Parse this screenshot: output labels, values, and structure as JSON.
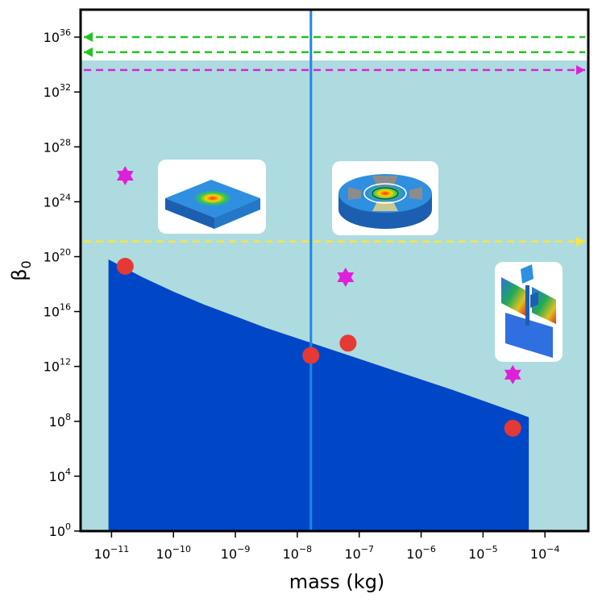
{
  "chart_data": {
    "type": "scatter",
    "title": "",
    "xlabel": "mass (kg)",
    "ylabel": "β",
    "ylabel_sub": "0",
    "x_scale": "log",
    "y_scale": "log",
    "xlim_exp": [
      -11.5,
      -3.3
    ],
    "ylim_exp": [
      0,
      38
    ],
    "x_ticks": [
      {
        "base": "10",
        "exp": "−11",
        "value_exp": -11
      },
      {
        "base": "10",
        "exp": "−10",
        "value_exp": -10
      },
      {
        "base": "10",
        "exp": "−9",
        "value_exp": -9
      },
      {
        "base": "10",
        "exp": "−8",
        "value_exp": -8
      },
      {
        "base": "10",
        "exp": "−7",
        "value_exp": -7
      },
      {
        "base": "10",
        "exp": "−6",
        "value_exp": -6
      },
      {
        "base": "10",
        "exp": "−5",
        "value_exp": -5
      },
      {
        "base": "10",
        "exp": "−4",
        "value_exp": -4
      }
    ],
    "y_ticks": [
      {
        "base": "10",
        "exp": "0",
        "value_exp": 0
      },
      {
        "base": "10",
        "exp": "4",
        "value_exp": 4
      },
      {
        "base": "10",
        "exp": "8",
        "value_exp": 8
      },
      {
        "base": "10",
        "exp": "12",
        "value_exp": 12
      },
      {
        "base": "10",
        "exp": "16",
        "value_exp": 16
      },
      {
        "base": "10",
        "exp": "20",
        "value_exp": 20
      },
      {
        "base": "10",
        "exp": "24",
        "value_exp": 24
      },
      {
        "base": "10",
        "exp": "28",
        "value_exp": 28
      },
      {
        "base": "10",
        "exp": "32",
        "value_exp": 32
      },
      {
        "base": "10",
        "exp": "36",
        "value_exp": 36
      }
    ],
    "series": [
      {
        "name": "circles",
        "marker": "circle",
        "color": "#e53935",
        "points": [
          {
            "x_exp": -10.78,
            "y_exp": 19.3
          },
          {
            "x_exp": -7.78,
            "y_exp": 12.8
          },
          {
            "x_exp": -7.18,
            "y_exp": 13.7
          },
          {
            "x_exp": -4.52,
            "y_exp": 7.5
          }
        ]
      },
      {
        "name": "stars",
        "marker": "star",
        "color": "#e020d8",
        "points": [
          {
            "x_exp": -10.78,
            "y_exp": 25.9
          },
          {
            "x_exp": -7.22,
            "y_exp": 18.5
          },
          {
            "x_exp": -4.52,
            "y_exp": 11.4
          }
        ]
      }
    ],
    "filled_region": {
      "name": "lower-bound-region",
      "color": "#0047c8",
      "x_exp": [
        -11.05,
        -10.5,
        -10.0,
        -9.5,
        -9.0,
        -8.5,
        -8.0,
        -7.5,
        -7.0,
        -6.5,
        -6.0,
        -5.5,
        -5.0,
        -4.5,
        -4.26
      ],
      "y_exp": [
        19.8,
        18.5,
        17.45,
        16.5,
        15.65,
        14.8,
        14.05,
        13.3,
        12.55,
        11.8,
        11.05,
        10.3,
        9.5,
        8.7,
        8.3
      ]
    },
    "background_region": {
      "color": "#aedbdf",
      "y_max_exp": 34.3
    },
    "vertical_line": {
      "x_exp": -7.78,
      "color": "#1e88e5"
    },
    "arrows": [
      {
        "name": "green-arrow-1",
        "y_exp": 36.0,
        "direction": "left",
        "color": "#22c422"
      },
      {
        "name": "green-arrow-2",
        "y_exp": 34.9,
        "direction": "left",
        "color": "#22c422"
      },
      {
        "name": "magenta-arrow",
        "y_exp": 33.6,
        "direction": "right",
        "color": "#e020d8"
      },
      {
        "name": "yellow-arrow",
        "y_exp": 21.1,
        "direction": "right",
        "color": "#f5e642"
      }
    ],
    "insets": [
      {
        "name": "square-membrane-inset",
        "icon": "square-membrane"
      },
      {
        "name": "disk-resonator-inset",
        "icon": "disk-resonator"
      },
      {
        "name": "cantilever-inset",
        "icon": "cantilever"
      }
    ]
  }
}
